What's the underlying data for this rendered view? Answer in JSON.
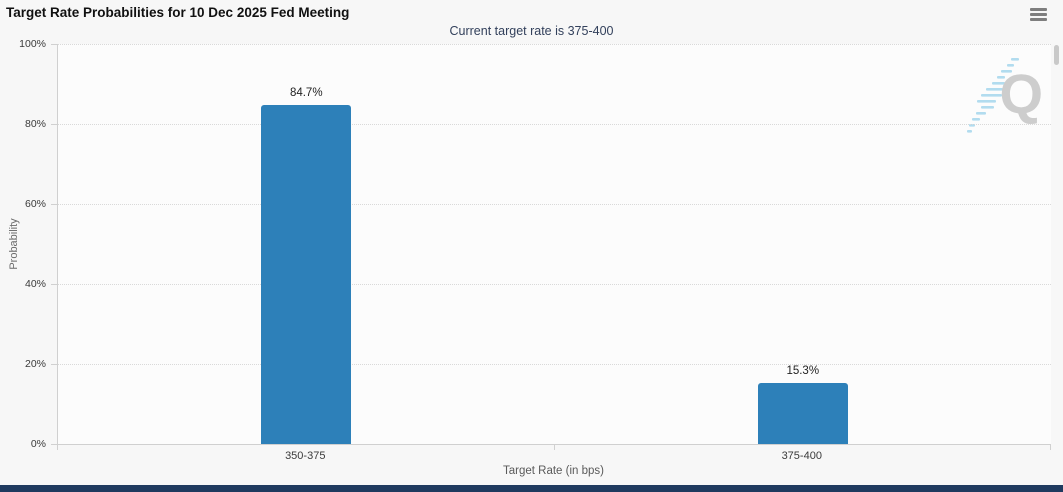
{
  "header": {
    "title": "Target Rate Probabilities for 10 Dec 2025 Fed Meeting",
    "subtitle": "Current target rate is 375-400"
  },
  "chart_data": {
    "type": "bar",
    "title": "Target Rate Probabilities for 10 Dec 2025 Fed Meeting",
    "subtitle": "Current target rate is 375-400",
    "current_target_rate": "375-400",
    "categories": [
      "350-375",
      "375-400"
    ],
    "values": [
      84.7,
      15.3
    ],
    "data_labels": [
      "84.7%",
      "15.3%"
    ],
    "xlabel": "Target Rate (in bps)",
    "ylabel": "Probability",
    "ylim": [
      0,
      100
    ],
    "yticks": [
      0,
      20,
      40,
      60,
      80,
      100
    ],
    "ytick_labels": [
      "0%",
      "20%",
      "40%",
      "60%",
      "80%",
      "100%"
    ],
    "grid": "horizontal-dotted",
    "legend": "none",
    "bar_color": "#2d80b9"
  },
  "watermark": {
    "letter": "Q"
  },
  "icons": {
    "menu": "hamburger-icon",
    "watermark": "quikstrike-q-logo"
  },
  "colors": {
    "page_bg": "#f7f7f7",
    "plot_bg": "#fcfcfc",
    "title_text": "#111111",
    "subtitle_text": "#33415c",
    "bar": "#2d80b9",
    "axis_text": "#3a3a3a",
    "axis_title_text": "#5a5a5a",
    "watermark_q": "#c9c9c9",
    "watermark_dash": "#abd9ee",
    "footer_bar": "#1f3a5f"
  }
}
